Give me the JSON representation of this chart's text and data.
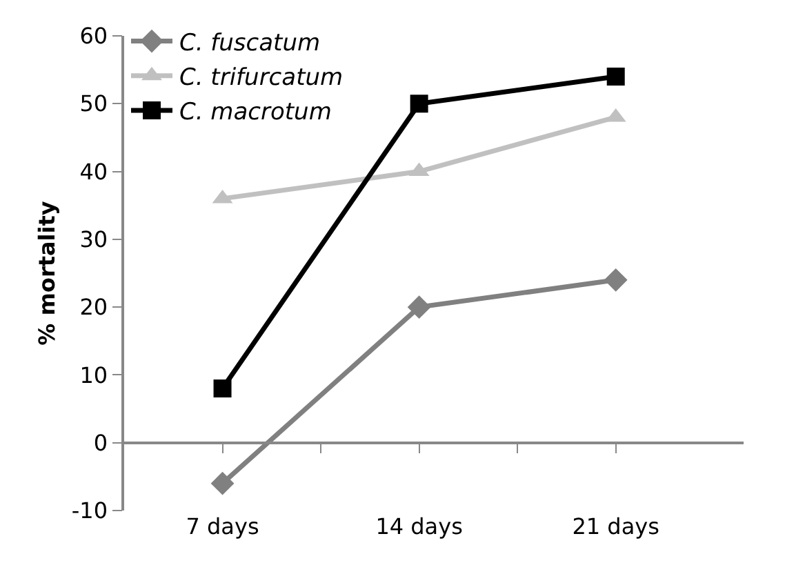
{
  "chart_data": {
    "type": "line",
    "ylabel": "% mortality",
    "categories": [
      "7 days",
      "14 days",
      "21 days"
    ],
    "series": [
      {
        "name": "C. fuscatum",
        "color": "#808080",
        "marker": "diamond",
        "values": [
          -6,
          20,
          24
        ]
      },
      {
        "name": "C. trifurcatum",
        "color": "#c0c0c0",
        "marker": "triangle",
        "values": [
          36,
          40,
          48
        ]
      },
      {
        "name": "C. macrotum",
        "color": "#000000",
        "marker": "square",
        "values": [
          8,
          50,
          54
        ]
      }
    ],
    "ylim": [
      -10,
      60
    ],
    "yticks": [
      -10,
      0,
      10,
      20,
      30,
      40,
      50,
      60
    ],
    "legend": "top left",
    "line_style": "solid"
  }
}
